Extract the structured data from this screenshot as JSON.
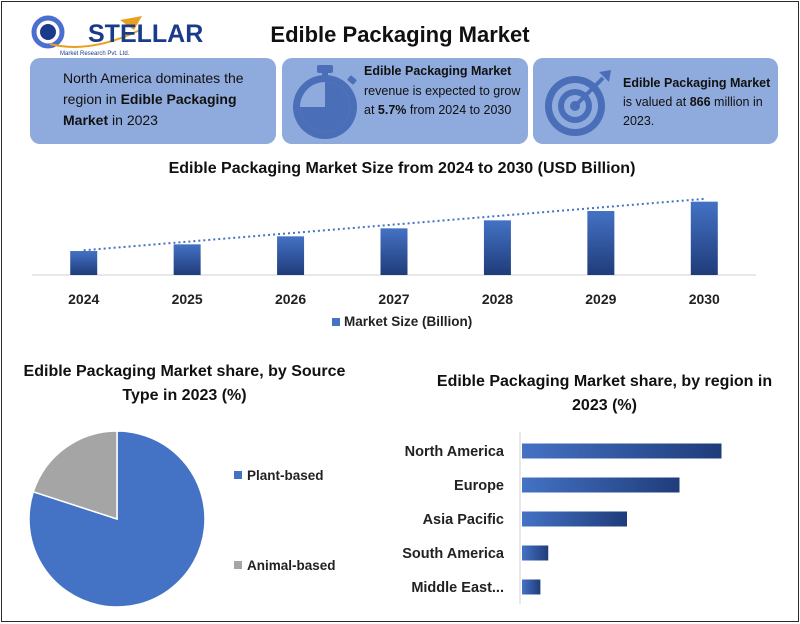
{
  "logo": {
    "brand": "STELLAR",
    "sub": "Market Research Pvt. Ltd."
  },
  "title": "Edible Packaging Market",
  "cards": {
    "card1": {
      "pre": "North America dominates the region in ",
      "bold": "Edible Packaging Market",
      "post": " in 2023",
      "icon": "none"
    },
    "card2": {
      "bold1": "Edible Packaging Market",
      "mid": " revenue is expected to grow at ",
      "bold2": "5.7%",
      "post": " from 2024 to 2030",
      "icon": "stopwatch-icon"
    },
    "card3": {
      "bold1": "Edible Packaging Market",
      "mid": " is valued at ",
      "bold2": "866",
      "post": " million in 2023.",
      "icon": "target-icon"
    }
  },
  "colors": {
    "card_bg": "#8faadc",
    "bar_dark": "#1f3c7a",
    "bar_light": "#4472c4",
    "pie_main": "#4472c4",
    "pie_minor": "#a5a5a5",
    "trend": "#4472c4"
  },
  "chart_data": [
    {
      "type": "bar",
      "title": "Edible Packaging Market  Size from 2024 to 2030 (USD Billion)",
      "categories": [
        "2024",
        "2025",
        "2026",
        "2027",
        "2028",
        "2029",
        "2030"
      ],
      "series": [
        {
          "name": "Market Size (Billion)",
          "values": [
            0.93,
            0.98,
            1.04,
            1.1,
            1.16,
            1.23,
            1.3
          ]
        }
      ],
      "trendline": "linear-dotted",
      "ylim": [
        0.75,
        1.35
      ],
      "y_axis_visible": false,
      "legend": "bottom",
      "grid": false
    },
    {
      "type": "pie",
      "title": "Edible Packaging Market  share, by Source Type in 2023 (%)",
      "categories": [
        "Plant-based",
        "Animal-based"
      ],
      "values": [
        80,
        20
      ],
      "legend": "right"
    },
    {
      "type": "bar",
      "orientation": "horizontal",
      "title": "Edible Packaging Market  share, by region in 2023 (%)",
      "categories": [
        "North America",
        "Europe",
        "Asia Pacific",
        "South America",
        "Middle East..."
      ],
      "values": [
        38,
        30,
        20,
        5,
        3.5
      ],
      "xlim": [
        0,
        40
      ],
      "legend": "none",
      "grid": false
    }
  ]
}
